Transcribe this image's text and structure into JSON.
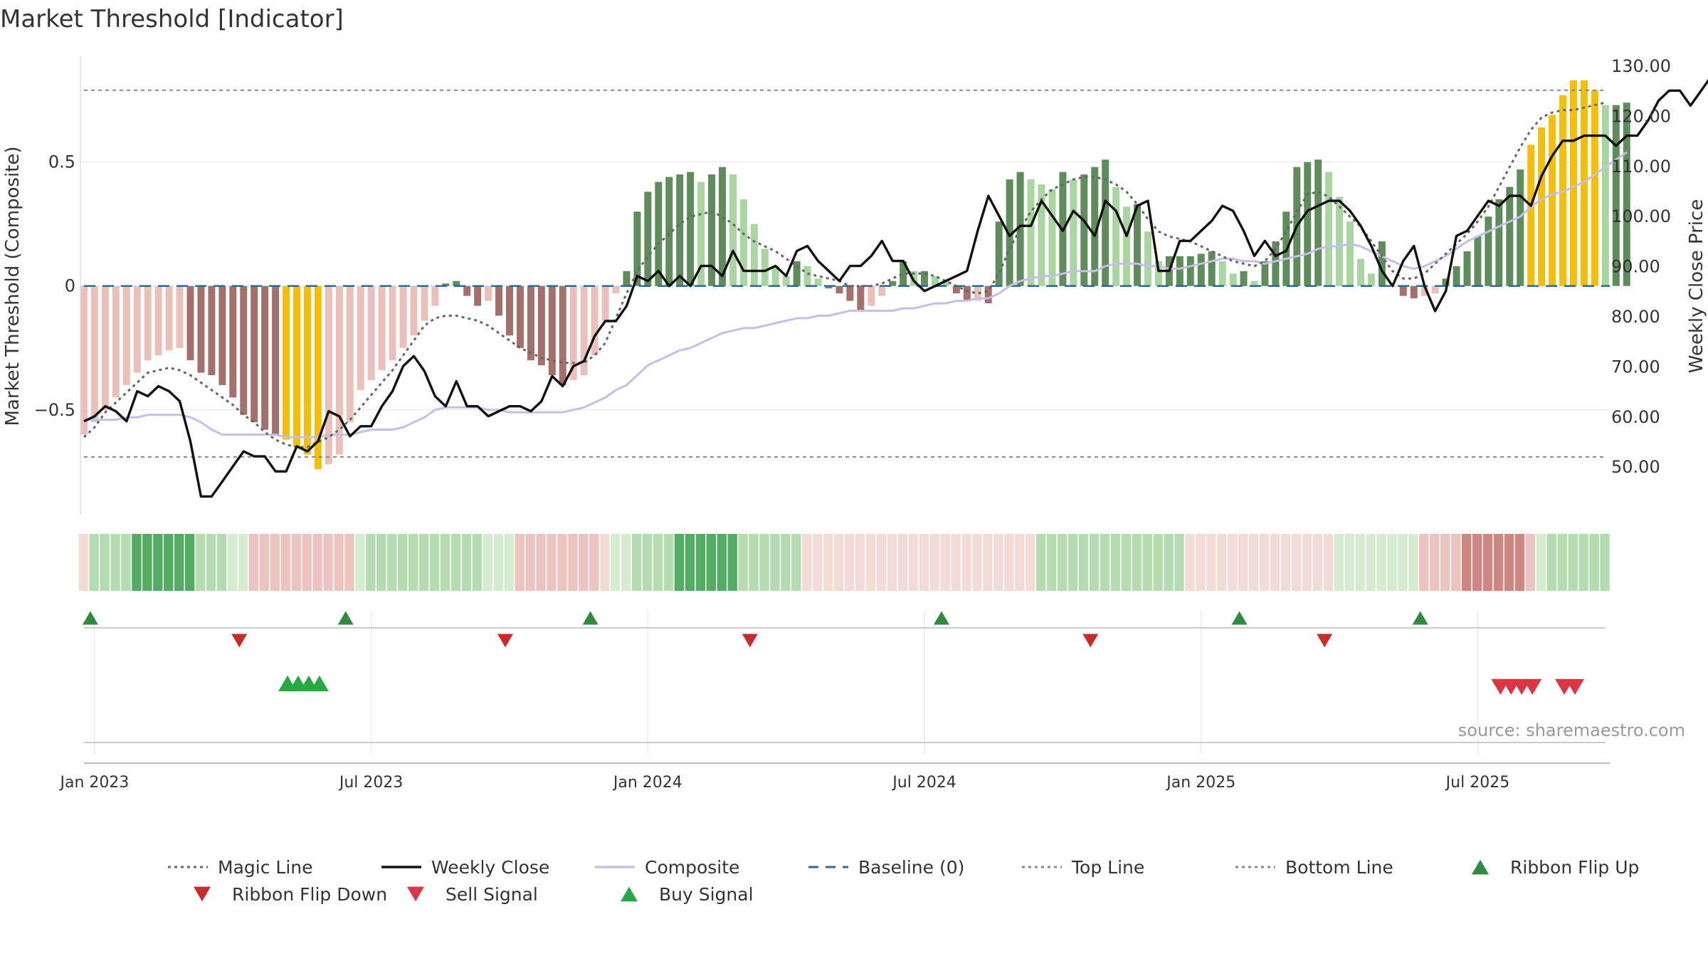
{
  "chart_data": {
    "type": "bar+line",
    "title": "Market Threshold [Indicator]",
    "ylabel_left": "Market Threshold (Composite)",
    "ylabel_right": "Weekly Close Price",
    "source_note": "source: sharemaestro.com",
    "x_tick_labels": [
      "Jan 2023",
      "Jul 2023",
      "Jan 2024",
      "Jul 2024",
      "Jan 2025",
      "Jul 2025"
    ],
    "y_left_ticks": [
      "0.5",
      "0",
      "−0.5"
    ],
    "y_left_tick_values": [
      0.5,
      0,
      -0.5
    ],
    "y_right_ticks": [
      "130.00",
      "120.00",
      "110.00",
      "100.00",
      "90.00",
      "80.00",
      "70.00",
      "60.00",
      "50.00"
    ],
    "y_right_tick_values": [
      130,
      120,
      110,
      100,
      90,
      80,
      70,
      60,
      50
    ],
    "y_left_range": [
      -0.92,
      0.93
    ],
    "y_right_range": [
      40.5,
      132
    ],
    "top_line": 0.79,
    "bottom_line": -0.69,
    "baseline": 0,
    "weeks_total": 144,
    "composite_bars": [
      -0.6,
      -0.55,
      -0.5,
      -0.45,
      -0.4,
      -0.35,
      -0.3,
      -0.28,
      -0.26,
      -0.25,
      -0.3,
      -0.35,
      -0.36,
      -0.4,
      -0.45,
      -0.52,
      -0.55,
      -0.58,
      -0.6,
      -0.62,
      -0.65,
      -0.68,
      -0.74,
      -0.72,
      -0.68,
      -0.55,
      -0.42,
      -0.38,
      -0.34,
      -0.3,
      -0.25,
      -0.2,
      -0.14,
      -0.08,
      0.01,
      0.02,
      -0.04,
      -0.08,
      -0.06,
      -0.12,
      -0.2,
      -0.25,
      -0.3,
      -0.32,
      -0.36,
      -0.4,
      -0.38,
      -0.36,
      -0.28,
      -0.14,
      -0.03,
      0.06,
      0.3,
      0.38,
      0.42,
      0.44,
      0.45,
      0.46,
      0.42,
      0.45,
      0.48,
      0.45,
      0.35,
      0.25,
      0.15,
      0.08,
      0.04,
      0.1,
      0.08,
      0.03,
      -0.01,
      -0.03,
      -0.06,
      -0.1,
      -0.08,
      -0.04,
      0.02,
      0.1,
      0.06,
      0.06,
      0.04,
      0.02,
      -0.03,
      -0.06,
      -0.06,
      -0.07,
      0.26,
      0.43,
      0.46,
      0.43,
      0.41,
      0.39,
      0.46,
      0.43,
      0.45,
      0.48,
      0.51,
      0.4,
      0.32,
      0.33,
      0.22,
      0.1,
      0.12,
      0.12,
      0.12,
      0.13,
      0.14,
      0.1,
      0.05,
      0.06,
      0.02,
      0.1,
      0.18,
      0.3,
      0.48,
      0.5,
      0.51,
      0.46,
      0.36,
      0.26,
      0.11,
      0.05,
      0.18,
      0.0,
      -0.04,
      -0.05,
      -0.04,
      -0.03,
      0.03,
      0.08,
      0.14,
      0.2,
      0.28,
      0.35,
      0.4,
      0.47,
      0.57,
      0.64,
      0.69,
      0.77,
      0.83,
      0.83,
      0.79,
      0.73,
      0.73,
      0.74
    ],
    "composite_line": [
      -0.54,
      -0.54,
      -0.54,
      -0.54,
      -0.53,
      -0.53,
      -0.52,
      -0.52,
      -0.52,
      -0.52,
      -0.53,
      -0.55,
      -0.58,
      -0.6,
      -0.6,
      -0.6,
      -0.6,
      -0.6,
      -0.6,
      -0.61,
      -0.61,
      -0.61,
      -0.61,
      -0.6,
      -0.6,
      -0.6,
      -0.59,
      -0.58,
      -0.58,
      -0.58,
      -0.57,
      -0.55,
      -0.53,
      -0.5,
      -0.49,
      -0.49,
      -0.49,
      -0.49,
      -0.5,
      -0.5,
      -0.51,
      -0.51,
      -0.51,
      -0.51,
      -0.51,
      -0.51,
      -0.5,
      -0.49,
      -0.47,
      -0.45,
      -0.42,
      -0.4,
      -0.36,
      -0.32,
      -0.3,
      -0.28,
      -0.26,
      -0.25,
      -0.23,
      -0.21,
      -0.19,
      -0.18,
      -0.17,
      -0.17,
      -0.16,
      -0.15,
      -0.14,
      -0.13,
      -0.13,
      -0.12,
      -0.12,
      -0.11,
      -0.1,
      -0.1,
      -0.1,
      -0.1,
      -0.1,
      -0.09,
      -0.09,
      -0.08,
      -0.07,
      -0.07,
      -0.06,
      -0.06,
      -0.05,
      -0.05,
      -0.03,
      0.0,
      0.02,
      0.03,
      0.04,
      0.04,
      0.05,
      0.06,
      0.06,
      0.06,
      0.08,
      0.09,
      0.09,
      0.09,
      0.08,
      0.08,
      0.07,
      0.07,
      0.08,
      0.09,
      0.1,
      0.11,
      0.11,
      0.1,
      0.1,
      0.09,
      0.1,
      0.11,
      0.12,
      0.13,
      0.15,
      0.16,
      0.16,
      0.17,
      0.16,
      0.14,
      0.12,
      0.1,
      0.08,
      0.07,
      0.08,
      0.1,
      0.12,
      0.15,
      0.18,
      0.2,
      0.22,
      0.24,
      0.26,
      0.28,
      0.32,
      0.35,
      0.37,
      0.38,
      0.4,
      0.42,
      0.45,
      0.48,
      0.51,
      0.54
    ],
    "magic_line": [
      -0.61,
      -0.57,
      -0.51,
      -0.47,
      -0.43,
      -0.39,
      -0.35,
      -0.34,
      -0.33,
      -0.34,
      -0.36,
      -0.39,
      -0.42,
      -0.45,
      -0.48,
      -0.52,
      -0.55,
      -0.59,
      -0.62,
      -0.64,
      -0.65,
      -0.65,
      -0.63,
      -0.61,
      -0.58,
      -0.54,
      -0.49,
      -0.44,
      -0.39,
      -0.34,
      -0.28,
      -0.22,
      -0.16,
      -0.13,
      -0.12,
      -0.12,
      -0.13,
      -0.14,
      -0.16,
      -0.19,
      -0.22,
      -0.25,
      -0.27,
      -0.29,
      -0.3,
      -0.31,
      -0.31,
      -0.31,
      -0.28,
      -0.23,
      -0.13,
      -0.03,
      0.06,
      0.12,
      0.17,
      0.21,
      0.25,
      0.28,
      0.29,
      0.3,
      0.28,
      0.25,
      0.21,
      0.18,
      0.16,
      0.14,
      0.11,
      0.08,
      0.05,
      0.04,
      0.03,
      0.02,
      0.0,
      0.0,
      0.0,
      0.01,
      0.03,
      0.05,
      0.05,
      0.05,
      0.04,
      0.02,
      0.0,
      -0.02,
      -0.03,
      -0.02,
      0.05,
      0.15,
      0.23,
      0.3,
      0.35,
      0.39,
      0.41,
      0.43,
      0.44,
      0.44,
      0.43,
      0.41,
      0.38,
      0.33,
      0.27,
      0.22,
      0.2,
      0.19,
      0.18,
      0.16,
      0.14,
      0.12,
      0.1,
      0.09,
      0.08,
      0.1,
      0.15,
      0.22,
      0.3,
      0.37,
      0.38,
      0.36,
      0.32,
      0.28,
      0.24,
      0.18,
      0.12,
      0.06,
      0.03,
      0.03,
      0.05,
      0.09,
      0.13,
      0.17,
      0.21,
      0.26,
      0.32,
      0.4,
      0.48,
      0.56,
      0.63,
      0.68,
      0.7,
      0.71,
      0.71,
      0.72,
      0.73,
      0.74
    ],
    "weekly_close": [
      59,
      60,
      62,
      61,
      59,
      65,
      64,
      66,
      65,
      63,
      55,
      44,
      44,
      47,
      50,
      53,
      52,
      52,
      49,
      49,
      54,
      53,
      55,
      61,
      60,
      56,
      58,
      58,
      62,
      65,
      70,
      72,
      69,
      64,
      62,
      67,
      62,
      62,
      60,
      61,
      62,
      62,
      61,
      63,
      68,
      66,
      70,
      71,
      76,
      79,
      79,
      82,
      88,
      87,
      89,
      86,
      88,
      86,
      90,
      90,
      88,
      93,
      89,
      89,
      89,
      90,
      88,
      93,
      94,
      91,
      89,
      87,
      90,
      90,
      92,
      95,
      91,
      91,
      87,
      85,
      86,
      87,
      88,
      89,
      97,
      104,
      100,
      96,
      98,
      98,
      103,
      100,
      97,
      101,
      99,
      96,
      103,
      101,
      96,
      102,
      103,
      89,
      89,
      95,
      95,
      97,
      99,
      102,
      101,
      97,
      92,
      95,
      92,
      93,
      98,
      101,
      102,
      103,
      103,
      101,
      98,
      94,
      89,
      86,
      91,
      94,
      86,
      81,
      85,
      96,
      97,
      100,
      103,
      102,
      104,
      104,
      102,
      108,
      112,
      115,
      115,
      116,
      116,
      116,
      114,
      116,
      116,
      119,
      123,
      125,
      125,
      122,
      125,
      128
    ],
    "ribbon_weeks": [
      0,
      1,
      2,
      3,
      4,
      5,
      6,
      7,
      8,
      9,
      10,
      11,
      12,
      13,
      14,
      15,
      16,
      17,
      18,
      19,
      20,
      21,
      22,
      23,
      24,
      25,
      26,
      27,
      28,
      29,
      30,
      31,
      32,
      33,
      34,
      35,
      36,
      37,
      38,
      39,
      40,
      41,
      42,
      43,
      44,
      45,
      46,
      47,
      48,
      49,
      50,
      51,
      52,
      53,
      54,
      55,
      56,
      57,
      58,
      59,
      60,
      61,
      62,
      63,
      64,
      65,
      66,
      67,
      68,
      69,
      70,
      71,
      72,
      73,
      74,
      75,
      76,
      77,
      78,
      79,
      80,
      81,
      82,
      83,
      84,
      85,
      86,
      87,
      88,
      89,
      90,
      91,
      92,
      93,
      94,
      95,
      96,
      97,
      98,
      99,
      100,
      101,
      102,
      103,
      104,
      105,
      106,
      107,
      108,
      109,
      110,
      111,
      112,
      113,
      114,
      115,
      116,
      117,
      118,
      119,
      120,
      121,
      122,
      123,
      124,
      125,
      126,
      127,
      128,
      129,
      130,
      131,
      132,
      133,
      134,
      135,
      136,
      137,
      138,
      139,
      140,
      141,
      142,
      143
    ],
    "ribbon_states": [
      -1,
      2,
      2,
      2,
      2,
      3,
      3,
      3,
      3,
      3,
      3,
      2,
      2,
      2,
      1,
      1,
      -2,
      -2,
      -2,
      -2,
      -2,
      -2,
      -2,
      -2,
      -2,
      -2,
      1,
      2,
      2,
      2,
      2,
      2,
      2,
      2,
      2,
      2,
      2,
      2,
      1,
      1,
      1,
      -2,
      -2,
      -2,
      -2,
      -2,
      -2,
      -2,
      -2,
      -1,
      1,
      1,
      2,
      2,
      2,
      2,
      3,
      3,
      3,
      3,
      3,
      3,
      2,
      2,
      2,
      2,
      2,
      2,
      -1,
      -1,
      -1,
      -1,
      -1,
      -1,
      -1,
      -1,
      -1,
      -1,
      -1,
      -1,
      -1,
      -1,
      -1,
      -1,
      -1,
      -1,
      -1,
      -1,
      -1,
      -1,
      2,
      2,
      2,
      2,
      2,
      2,
      2,
      2,
      2,
      2,
      2,
      2,
      2,
      2,
      -1,
      -1,
      -1,
      -1,
      -1,
      -1,
      -1,
      -1,
      -1,
      -1,
      -1,
      -1,
      -1,
      -1,
      1,
      1,
      1,
      1,
      1,
      1,
      1,
      1,
      -2,
      -2,
      -2,
      -2,
      -3,
      -3,
      -3,
      -3,
      -3,
      -3,
      -2,
      1,
      2,
      2,
      2,
      2,
      2,
      2,
      3,
      3,
      3,
      3,
      3,
      3,
      3,
      3,
      2,
      2,
      2,
      2,
      2,
      2,
      2,
      1
    ],
    "highlight_weeks": [
      19,
      20,
      21,
      22,
      136,
      137,
      138,
      139,
      140,
      141,
      142
    ],
    "ribbon_flip_up_weeks": [
      1,
      25,
      48,
      81,
      109,
      126
    ],
    "ribbon_flip_down_weeks": [
      15,
      40,
      63,
      95,
      117
    ],
    "buy_signal_weeks": [
      19,
      20,
      21,
      22
    ],
    "sell_signal_weeks": [
      133,
      134,
      135,
      136,
      139,
      140
    ],
    "legend": [
      {
        "label": "Magic Line",
        "kind": "dotted",
        "color": "#666666"
      },
      {
        "label": "Weekly Close",
        "kind": "solid",
        "color": "#111111"
      },
      {
        "label": "Composite",
        "kind": "solid",
        "color": "#c5bfe6"
      },
      {
        "label": "Baseline (0)",
        "kind": "dashed",
        "color": "#2a6c8f"
      },
      {
        "label": "Top Line",
        "kind": "dotted",
        "color": "#888888"
      },
      {
        "label": "Bottom Line",
        "kind": "dotted",
        "color": "#888888"
      },
      {
        "label": "Ribbon Flip Up",
        "kind": "tri-up",
        "color": "#2e8b3f"
      },
      {
        "label": "Ribbon Flip Down",
        "kind": "tri-down",
        "color": "#c92a2a"
      },
      {
        "label": "Sell Signal",
        "kind": "tri-down",
        "color": "#dc3545"
      },
      {
        "label": "Buy Signal",
        "kind": "tri-up",
        "color": "#28a745"
      }
    ],
    "colors": {
      "bar_pos_strong": "#5e8c5a",
      "bar_pos_weak": "#a8d5a0",
      "bar_neg_strong": "#a5706c",
      "bar_neg_weak": "#ebc0bb",
      "bar_highlight": "#f5be0b",
      "composite_line": "#c5bfe6",
      "weekly_close": "#111111",
      "magic_line": "#666666",
      "baseline": "#2a6c8f",
      "ribbon_pos": [
        "#d5ecd1",
        "#b4dcb0",
        "#82c488",
        "#52ac62",
        "#3d9a50"
      ],
      "ribbon_neg": [
        "#f3dbd8",
        "#ebc3bf",
        "#dba49f",
        "#cd8780",
        "#c07a74"
      ]
    },
    "grid": true,
    "legend_position": "bottom"
  }
}
